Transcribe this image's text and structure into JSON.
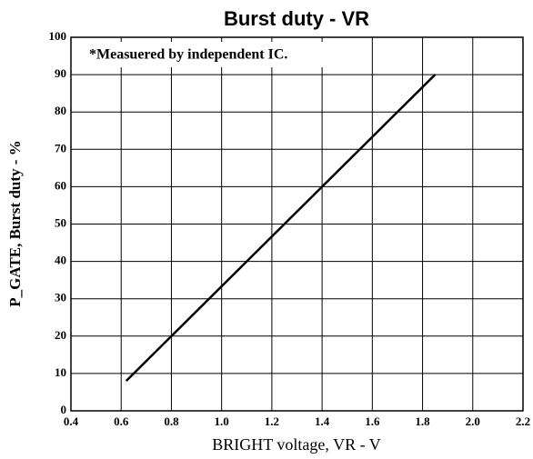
{
  "chart_data": {
    "type": "line",
    "title": "Burst duty - VR",
    "annotation": "*Measuered by independent IC.",
    "x_label": "BRIGHT voltage, VR - V",
    "y_label": "P_GATE, Burst duty - %",
    "x": [
      0.62,
      1.85
    ],
    "series": [
      {
        "color": "#000000",
        "values": [
          8,
          90
        ]
      }
    ],
    "xlim": [
      0.4,
      2.2
    ],
    "xticks": [
      0.4,
      0.6,
      0.8,
      {
        "value": 1,
        "label": "1.0"
      },
      1.2,
      1.4,
      1.6,
      1.8,
      {
        "value": 2,
        "label": "2.0"
      },
      2.2
    ],
    "ylim": [
      0,
      100
    ],
    "yticks": [
      0,
      10,
      20,
      30,
      40,
      50,
      60,
      70,
      80,
      90,
      100
    ],
    "grid": true
  }
}
